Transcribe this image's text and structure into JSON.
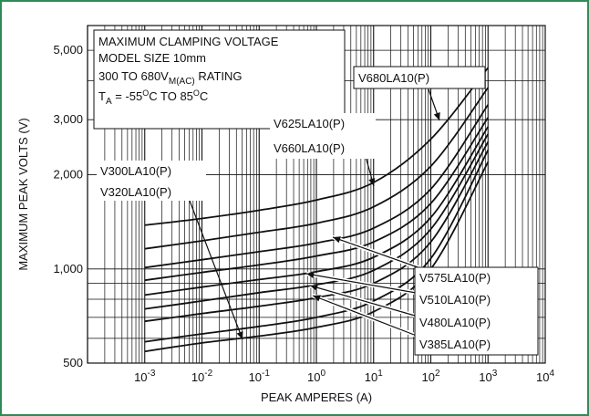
{
  "chart_data": {
    "type": "line",
    "title_lines": [
      "MAXIMUM CLAMPING VOLTAGE",
      "MODEL SIZE 10mm"
    ],
    "rating_line": {
      "prefix": "300 TO 680V",
      "sub": "M(AC)",
      "suffix": " RATING"
    },
    "temp_line": {
      "prefix": "T",
      "sub": "A",
      "mid": " = -55",
      "sup1": "O",
      "mid2": "C TO 85",
      "sup2": "O",
      "suffix": "C"
    },
    "xlabel": "PEAK AMPERES (A)",
    "ylabel": "MAXIMUM PEAK VOLTS (V)",
    "x_scale": "log",
    "y_scale": "log",
    "xlim": [
      0.0001,
      10000
    ],
    "ylim": [
      500,
      6000
    ],
    "x_ticks": [
      {
        "value": 0.001,
        "base": "10",
        "exp": "-3"
      },
      {
        "value": 0.01,
        "base": "10",
        "exp": "-2"
      },
      {
        "value": 0.1,
        "base": "10",
        "exp": "-1"
      },
      {
        "value": 1,
        "base": "10",
        "exp": "0"
      },
      {
        "value": 10,
        "base": "10",
        "exp": "1"
      },
      {
        "value": 100,
        "base": "10",
        "exp": "2"
      },
      {
        "value": 1000,
        "base": "10",
        "exp": "3"
      },
      {
        "value": 10000,
        "base": "10",
        "exp": "4"
      }
    ],
    "y_ticks": [
      {
        "value": 500,
        "label": "500"
      },
      {
        "value": 1000,
        "label": "1,000"
      },
      {
        "value": 2000,
        "label": "2,000"
      },
      {
        "value": 3000,
        "label": "3,000"
      },
      {
        "value": 5000,
        "label": "5,000"
      }
    ],
    "y_grid": [
      600,
      700,
      800,
      900,
      1000,
      2000,
      3000,
      4000,
      5000,
      6000
    ],
    "grid": true,
    "series": [
      {
        "name": "V300LA10(P)",
        "x": [
          0.001,
          0.01,
          0.1,
          1,
          10,
          100,
          1000
        ],
        "y": [
          545,
          580,
          610,
          650,
          730,
          1000,
          2200
        ]
      },
      {
        "name": "V320LA10(P)",
        "x": [
          0.001,
          0.01,
          0.1,
          1,
          10,
          100,
          1000
        ],
        "y": [
          585,
          620,
          655,
          700,
          790,
          1080,
          2400
        ]
      },
      {
        "name": "V385LA10(P)",
        "x": [
          0.001,
          0.01,
          0.1,
          1,
          10,
          100,
          1000
        ],
        "y": [
          680,
          720,
          760,
          810,
          900,
          1220,
          2550
        ]
      },
      {
        "name": "V480LA10(P)",
        "x": [
          0.001,
          0.01,
          0.1,
          1,
          10,
          100,
          1000
        ],
        "y": [
          745,
          790,
          840,
          890,
          990,
          1340,
          2700
        ]
      },
      {
        "name": "V510LA10(P)",
        "x": [
          0.001,
          0.01,
          0.1,
          1,
          10,
          100,
          1000
        ],
        "y": [
          825,
          875,
          925,
          980,
          1090,
          1460,
          2850
        ]
      },
      {
        "name": "V575LA10(P)",
        "x": [
          0.001,
          0.01,
          0.1,
          1,
          10,
          100,
          1000
        ],
        "y": [
          920,
          975,
          1030,
          1100,
          1220,
          1620,
          3050
        ]
      },
      {
        "name": "V625LA10(P)",
        "x": [
          0.001,
          0.01,
          0.1,
          1,
          10,
          100,
          1000
        ],
        "y": [
          1010,
          1070,
          1135,
          1210,
          1350,
          1800,
          3350
        ]
      },
      {
        "name": "V660LA10(P)",
        "x": [
          0.001,
          0.01,
          0.1,
          1,
          10,
          100,
          1000
        ],
        "y": [
          1160,
          1230,
          1310,
          1400,
          1580,
          2130,
          3800
        ]
      },
      {
        "name": "V680LA10(P)",
        "x": [
          0.001,
          0.01,
          0.1,
          1,
          10,
          100,
          1000
        ],
        "y": [
          1380,
          1450,
          1540,
          1660,
          1890,
          2600,
          4400
        ]
      }
    ],
    "annotations": [
      {
        "lines": [
          "V680LA10(P)"
        ],
        "box": true
      },
      {
        "lines": [
          "V625LA10(P)",
          "V660LA10(P)"
        ],
        "box": false
      },
      {
        "lines": [
          "V300LA10(P)",
          "V320LA10(P)"
        ],
        "box": false
      },
      {
        "lines": [
          "V575LA10(P)",
          "V510LA10(P)",
          "V480LA10(P)",
          "V385LA10(P)"
        ],
        "box": true
      }
    ],
    "colors": {
      "border": "#2e8b57",
      "lines": "#111111"
    }
  }
}
